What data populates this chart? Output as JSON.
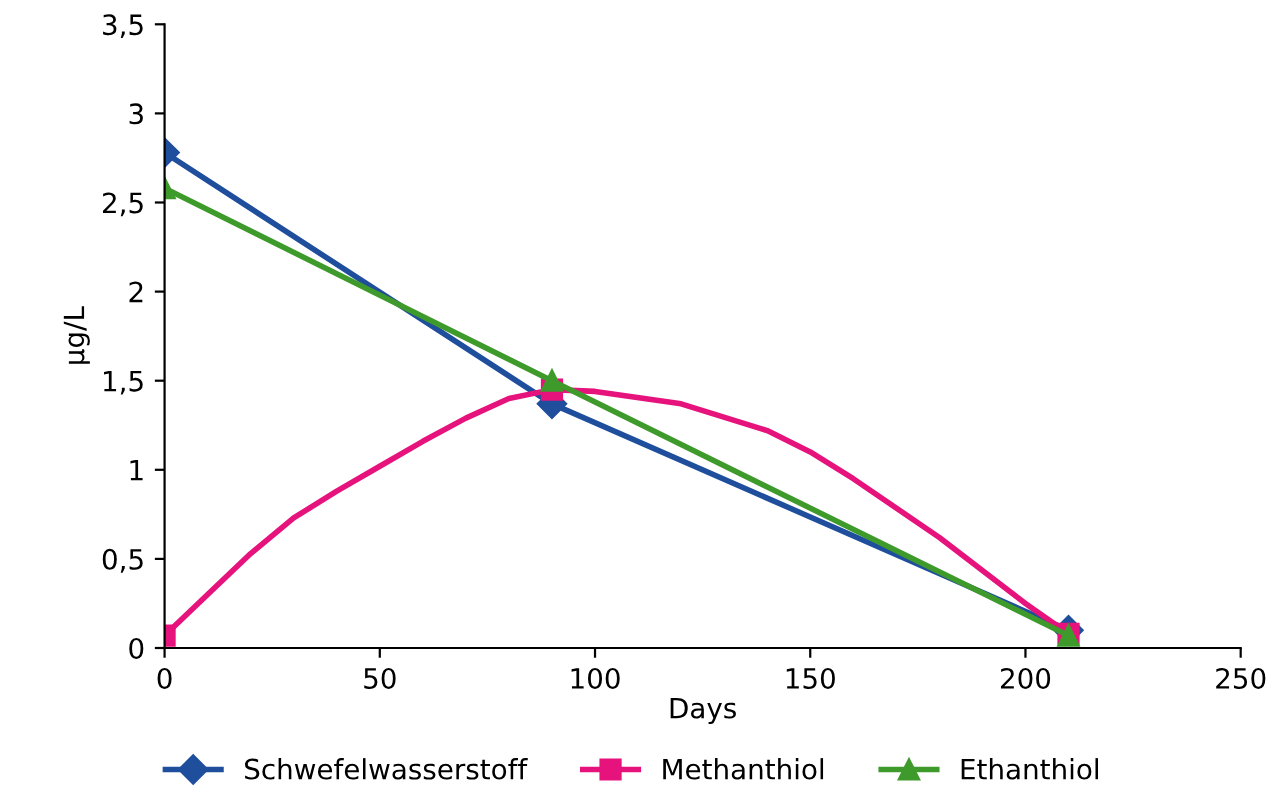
{
  "chart_data": {
    "type": "line",
    "xlabel": "Days",
    "ylabel": "µg/L",
    "xlim": [
      0,
      250
    ],
    "xticks": [
      0,
      50,
      100,
      150,
      200,
      250
    ],
    "ylim": [
      0,
      3.5
    ],
    "yticks": [
      0,
      {
        "value": 0.5,
        "label": "0,5"
      },
      1,
      {
        "value": 1.5,
        "label": "1,5"
      },
      2,
      {
        "value": 2.5,
        "label": "2,5"
      },
      3,
      {
        "value": 3.5,
        "label": "3,5"
      }
    ],
    "grid": false,
    "legend": "bottom",
    "series": [
      {
        "name": "Schwefelwasserstoff",
        "color": "#1f4e9c",
        "marker": "diamond",
        "x": [
          0,
          90,
          210
        ],
        "values": [
          2.78,
          1.37,
          0.1
        ]
      },
      {
        "name": "Methanthiol",
        "color": "#e6137d",
        "marker": "none",
        "x": [
          0,
          10,
          20,
          30,
          40,
          50,
          60,
          70,
          80,
          90,
          100,
          120,
          140,
          150,
          160,
          180,
          200,
          210
        ],
        "values": [
          0.07,
          0.3,
          0.53,
          0.73,
          0.88,
          1.02,
          1.16,
          1.29,
          1.4,
          1.45,
          1.44,
          1.37,
          1.22,
          1.1,
          0.95,
          0.62,
          0.25,
          0.08
        ]
      },
      {
        "type": "scatter",
        "color": "#e6137d",
        "marker": "square",
        "x": [
          0,
          90,
          210
        ],
        "values": [
          0.07,
          1.45,
          0.08
        ]
      },
      {
        "name": "Ethanthiol",
        "color": "#3e9a2b",
        "marker": "triangle",
        "x": [
          0,
          90,
          210
        ],
        "values": [
          2.58,
          1.5,
          0.07
        ]
      }
    ]
  }
}
